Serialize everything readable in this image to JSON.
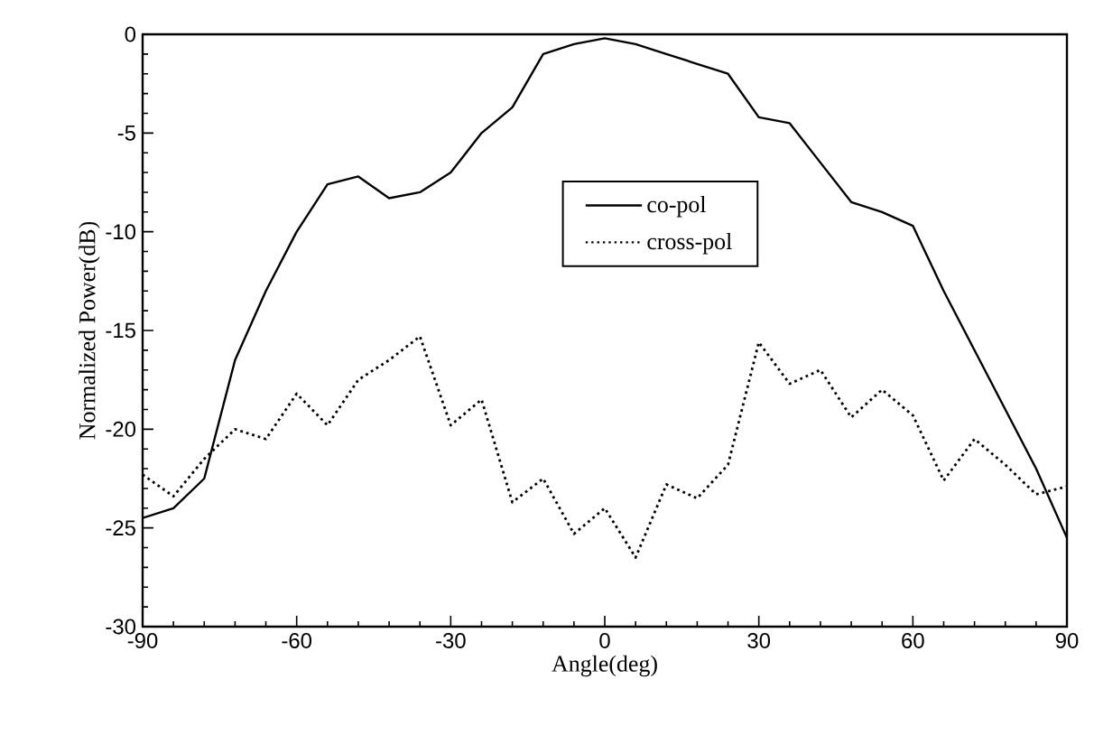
{
  "chart_data": {
    "type": "line",
    "xlabel": "Angle(deg)",
    "ylabel": "Normalized Power(dB)",
    "x": [
      -90,
      -84,
      -78,
      -72,
      -66,
      -60,
      -54,
      -48,
      -42,
      -36,
      -30,
      -24,
      -18,
      -12,
      -6,
      0,
      6,
      12,
      18,
      24,
      30,
      36,
      42,
      48,
      54,
      60,
      66,
      72,
      78,
      84,
      90
    ],
    "series": [
      {
        "name": "co-pol",
        "color": "#000000",
        "line_style": "solid",
        "values": [
          -24.5,
          -24,
          -22.5,
          -16.5,
          -13,
          -10,
          -7.6,
          -7.2,
          -8.3,
          -8,
          -7,
          -5,
          -3.7,
          -1,
          -0.5,
          -0.2,
          -0.5,
          -1,
          -1.5,
          -2,
          -4.2,
          -4.5,
          -6.5,
          -8.5,
          -9,
          -9.7,
          -13,
          -16,
          -19,
          -22,
          -25.5
        ]
      },
      {
        "name": "cross-pol",
        "color": "#000000",
        "line_style": "dotted",
        "values": [
          -22.3,
          -23.4,
          -21.5,
          -20,
          -20.5,
          -18.2,
          -19.8,
          -17.5,
          -16.5,
          -15.3,
          -19.8,
          -18.5,
          -23.7,
          -22.5,
          -25.3,
          -24,
          -26.5,
          -22.8,
          -23.5,
          -21.8,
          -15.6,
          -17.7,
          -17,
          -19.4,
          -18,
          -19.3,
          -22.6,
          -20.5,
          -21.8,
          -23.3,
          -22.9
        ]
      }
    ],
    "xlim": [
      -90,
      90
    ],
    "ylim": [
      -30,
      0
    ],
    "xticks": [
      -90,
      -60,
      -30,
      0,
      30,
      60,
      90
    ],
    "yticks": [
      -30,
      -25,
      -20,
      -15,
      -10,
      -5,
      0
    ],
    "grid": false,
    "legend": "center",
    "marker": "none"
  }
}
